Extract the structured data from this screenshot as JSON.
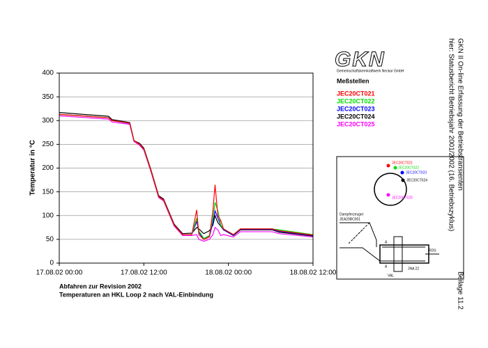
{
  "chart_data": {
    "type": "line",
    "ylabel": "Temperatur in °C",
    "caption": [
      "Abfahren zur Revision 2002",
      "Temperaturen an HKL Loop 2 nach VAL-Einbindung"
    ],
    "legend_title": "Meßstellen",
    "x": [
      0,
      7,
      7.5,
      10,
      10.6,
      11.4,
      12,
      13,
      14.1,
      14.8,
      16.3,
      17.5,
      18.8,
      19.5,
      19.8,
      20.5,
      21.3,
      21.8,
      22.1,
      22.5,
      22.9,
      23.3,
      24.7,
      25.7,
      30.2,
      31.2,
      36
    ],
    "xlim": [
      0,
      36
    ],
    "xticks": [
      {
        "value": 0,
        "label": "17.08.02 00:00"
      },
      {
        "value": 12,
        "label": "17.08.02 12:00"
      },
      {
        "value": 24,
        "label": "18.08.02 00:00"
      },
      {
        "value": 36,
        "label": "18.08.02 12:00"
      }
    ],
    "ylim": [
      0,
      400
    ],
    "yticks": [
      0,
      50,
      100,
      150,
      200,
      250,
      300,
      350,
      400
    ],
    "grid": true,
    "series": [
      {
        "name": "JEC20CT021",
        "color": "#ff0000",
        "values": [
          313,
          306,
          300,
          295,
          258,
          250,
          240,
          195,
          140,
          133,
          80,
          60,
          60,
          112,
          60,
          50,
          55,
          110,
          165,
          100,
          90,
          72,
          60,
          72,
          72,
          68,
          59
        ]
      },
      {
        "name": "JEC20CT022",
        "color": "#00dd00",
        "values": [
          313,
          306,
          300,
          295,
          258,
          250,
          240,
          195,
          140,
          133,
          80,
          60,
          60,
          95,
          68,
          52,
          58,
          95,
          128,
          110,
          80,
          72,
          60,
          72,
          72,
          70,
          60
        ]
      },
      {
        "name": "JEC20CT023",
        "color": "#0000ff",
        "values": [
          313,
          306,
          300,
          294,
          258,
          250,
          240,
          195,
          140,
          133,
          80,
          60,
          60,
          88,
          65,
          50,
          56,
          85,
          110,
          95,
          80,
          70,
          59,
          71,
          71,
          67,
          58
        ]
      },
      {
        "name": "JEC20CT024",
        "color": "#000000",
        "values": [
          317,
          309,
          302,
          296,
          258,
          252,
          242,
          197,
          142,
          135,
          82,
          62,
          63,
          75,
          72,
          62,
          68,
          80,
          100,
          85,
          78,
          70,
          58,
          70,
          70,
          65,
          57
        ]
      },
      {
        "name": "JEC20CT025",
        "color": "#ff00ff",
        "values": [
          310,
          303,
          297,
          292,
          256,
          248,
          238,
          193,
          138,
          131,
          78,
          58,
          58,
          60,
          50,
          46,
          50,
          60,
          75,
          70,
          58,
          60,
          55,
          66,
          66,
          62,
          55
        ]
      }
    ]
  },
  "logo": {
    "text": "GKN",
    "subtitle": "Gemeinschaftskernkraftwerk Neckar GmbH"
  },
  "header": {
    "lines": [
      "GKN II  On-line Erfassung der Betriebstransienten",
      "hier: Statusbericht Betriebsjahr 2001/2002 (16. Betriebszyklus)"
    ],
    "appendix": "Beilage 11.2"
  },
  "diagram": {
    "sensors": [
      "JEC20CT021",
      "JEC20CT022",
      "JEC20CT023",
      "JEC20CT024",
      "JEC20CT025"
    ],
    "steam_generator": [
      "Dampferzeuger",
      "JEA20BC001"
    ],
    "rds": "RDS",
    "jna": "JNA 22",
    "val": "VAL",
    "section": "A"
  }
}
